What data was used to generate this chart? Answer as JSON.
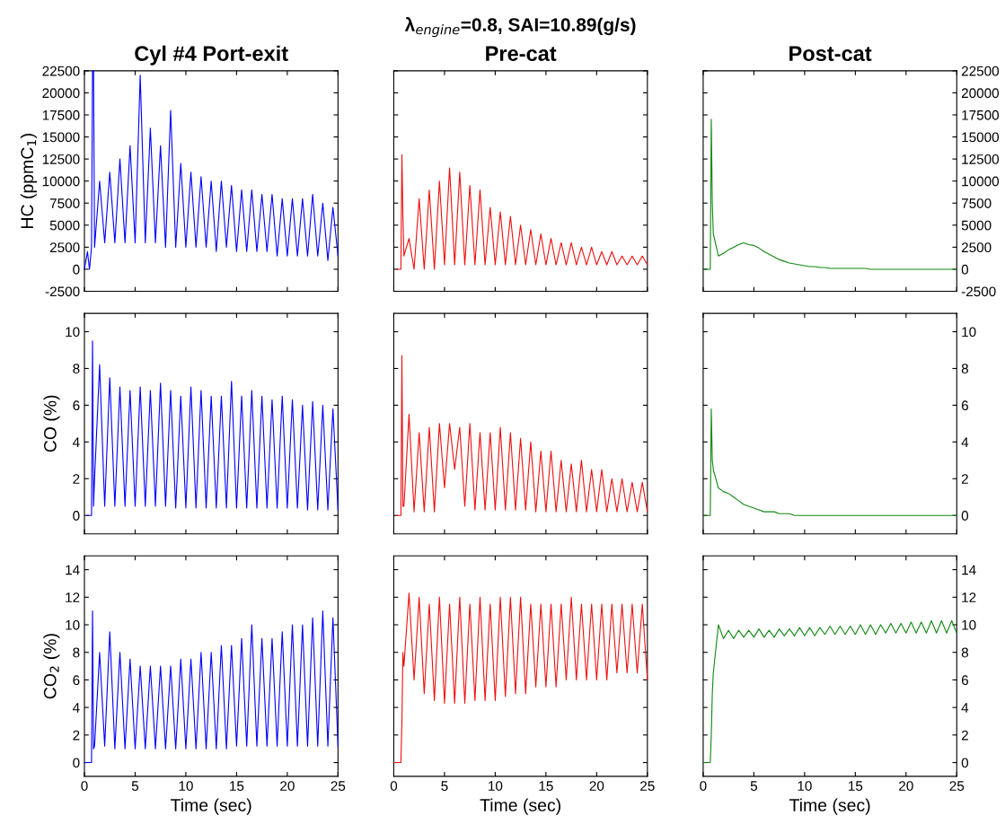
{
  "chart_data": [
    {
      "type": "line",
      "title": "Cyl #4 Port-exit",
      "ylabel": "HC (ppmC$_{1}$)",
      "tick_labels": "y",
      "xlim": [
        0,
        25
      ],
      "xticks": [
        0,
        5,
        10,
        15,
        20,
        25
      ],
      "ylim": [
        -2500,
        22500
      ],
      "yticks": [
        -2500,
        0,
        2500,
        5000,
        7500,
        10000,
        12500,
        15000,
        17500,
        20000,
        22500
      ],
      "x": [
        0,
        0.3,
        0.5,
        0.7,
        0.8,
        0.9,
        1.0,
        1.5,
        2.0,
        2.5,
        3.0,
        3.5,
        4.0,
        4.5,
        5.0,
        5.5,
        6.0,
        6.5,
        7.0,
        7.5,
        8.0,
        8.5,
        9.0,
        9.5,
        10.0,
        10.5,
        11.0,
        11.5,
        12.0,
        12.5,
        13.0,
        13.5,
        14.0,
        14.5,
        15.0,
        15.5,
        16.0,
        16.5,
        17.0,
        17.5,
        18.0,
        18.5,
        19.0,
        19.5,
        20.0,
        20.5,
        21.0,
        21.5,
        22.0,
        22.5,
        23.0,
        23.5,
        24.0,
        24.5,
        25.0
      ],
      "series": [
        {
          "color": "#0000ff",
          "values": [
            0,
            2000,
            0,
            2500,
            22500,
            22500,
            2500,
            10000,
            3000,
            11000,
            3000,
            12500,
            3000,
            14000,
            3000,
            22000,
            3000,
            16000,
            3000,
            14000,
            2500,
            18000,
            2500,
            12000,
            2500,
            11000,
            2500,
            10500,
            2500,
            10000,
            2000,
            10000,
            2500,
            9500,
            2000,
            9000,
            2000,
            9000,
            2000,
            8500,
            2000,
            8500,
            1500,
            8000,
            1500,
            8000,
            1500,
            8000,
            1500,
            8500,
            1500,
            7500,
            1000,
            7000,
            1500
          ]
        }
      ]
    },
    {
      "type": "line",
      "title": "Pre-cat",
      "subtitle": "λ$_{engine}$=0.8, SAI=10.89(g/s)",
      "tick_labels": false,
      "xlim": [
        0,
        25
      ],
      "xticks": [
        0,
        5,
        10,
        15,
        20,
        25
      ],
      "ylim": [
        -2500,
        22500
      ],
      "yticks": [
        -2500,
        0,
        2500,
        5000,
        7500,
        10000,
        12500,
        15000,
        17500,
        20000,
        22500
      ],
      "x": [
        0.3,
        0.5,
        0.7,
        0.8,
        0.9,
        1.0,
        1.5,
        2.0,
        2.5,
        3.0,
        3.5,
        4.0,
        4.5,
        5.0,
        5.5,
        6.0,
        6.5,
        7.0,
        7.5,
        8.0,
        8.5,
        9.0,
        9.5,
        10.0,
        10.5,
        11.0,
        11.5,
        12.0,
        12.5,
        13.0,
        13.5,
        14.0,
        14.5,
        15.0,
        15.5,
        16.0,
        16.5,
        17.0,
        17.5,
        18.0,
        18.5,
        19.0,
        19.5,
        20.0,
        20.5,
        21.0,
        21.5,
        22.0,
        22.5,
        23.0,
        23.5,
        24.0,
        24.5,
        25.0
      ],
      "series": [
        {
          "color": "#ee1111",
          "values": [
            0,
            0,
            0,
            13000,
            6000,
            1500,
            3500,
            0,
            8000,
            0,
            9000,
            0,
            10000,
            500,
            11500,
            500,
            11000,
            500,
            9500,
            500,
            9000,
            500,
            7000,
            500,
            6500,
            500,
            6000,
            500,
            5000,
            500,
            4500,
            500,
            4000,
            500,
            3500,
            500,
            3000,
            500,
            3000,
            500,
            2500,
            500,
            2500,
            500,
            2000,
            500,
            2000,
            500,
            1500,
            500,
            1500,
            500,
            1500,
            500
          ]
        }
      ]
    },
    {
      "type": "line",
      "title": "Post-cat",
      "tick_labels": "y",
      "xlim": [
        0,
        25
      ],
      "xticks": [
        0,
        5,
        10,
        15,
        20,
        25
      ],
      "ylim": [
        -2500,
        22500
      ],
      "yticks": [
        -2500,
        0,
        2500,
        5000,
        7500,
        10000,
        12500,
        15000,
        17500,
        20000,
        22500
      ],
      "x": [
        0,
        0.3,
        0.5,
        0.7,
        0.8,
        0.9,
        1.0,
        1.5,
        2.0,
        2.5,
        3.0,
        3.5,
        4.0,
        4.5,
        5.0,
        5.5,
        6.0,
        6.5,
        7.0,
        7.5,
        8.0,
        8.5,
        9.0,
        9.5,
        10.0,
        10.5,
        11.0,
        11.5,
        12.0,
        12.5,
        13.0,
        13.5,
        14.0,
        14.5,
        15.0,
        15.5,
        16.0,
        16.5,
        17.0,
        17.5,
        18.0,
        18.5,
        19.0,
        19.5,
        20.0,
        20.5,
        21.0,
        21.5,
        22.0,
        22.5,
        23.0,
        23.5,
        24.0,
        24.5,
        25.0
      ],
      "series": [
        {
          "color": "#118811",
          "values": [
            0,
            0,
            0,
            0,
            17000,
            7500,
            4000,
            1500,
            1800,
            2200,
            2500,
            2800,
            3000,
            2800,
            2700,
            2400,
            2000,
            1700,
            1400,
            1100,
            900,
            700,
            600,
            500,
            400,
            300,
            300,
            200,
            200,
            100,
            100,
            100,
            100,
            100,
            100,
            100,
            100,
            0,
            0,
            0,
            0,
            0,
            0,
            0,
            0,
            0,
            0,
            0,
            0,
            0,
            0,
            0,
            0,
            0,
            0
          ]
        }
      ]
    },
    {
      "type": "line",
      "ylabel": "CO (%)",
      "tick_labels": "y",
      "xlim": [
        0,
        25
      ],
      "xticks": [
        0,
        5,
        10,
        15,
        20,
        25
      ],
      "ylim": [
        -1,
        11
      ],
      "yticks": [
        0,
        2,
        4,
        6,
        8,
        10
      ],
      "x": [
        0.3,
        0.5,
        0.7,
        0.8,
        0.9,
        1.0,
        1.5,
        2.0,
        2.5,
        3.0,
        3.5,
        4.0,
        4.5,
        5.0,
        5.5,
        6.0,
        6.5,
        7.0,
        7.5,
        8.0,
        8.5,
        9.0,
        9.5,
        10.0,
        10.5,
        11.0,
        11.5,
        12.0,
        12.5,
        13.0,
        13.5,
        14.0,
        14.5,
        15.0,
        15.5,
        16.0,
        16.5,
        17.0,
        17.5,
        18.0,
        18.5,
        19.0,
        19.5,
        20.0,
        20.5,
        21.0,
        21.5,
        22.0,
        22.5,
        23.0,
        23.5,
        24.0,
        24.5,
        25.0
      ],
      "series": [
        {
          "color": "#0000ff",
          "values": [
            0,
            0,
            0,
            9.5,
            0.5,
            2,
            8.2,
            0.5,
            7.5,
            0.5,
            7,
            0.5,
            6.8,
            0.5,
            7,
            0.5,
            6.8,
            0.5,
            7.2,
            0.5,
            6.8,
            0.4,
            6.5,
            0.4,
            7,
            0.4,
            6.8,
            0.4,
            6.5,
            0.4,
            6.5,
            0.4,
            7.3,
            0.4,
            6.5,
            0.4,
            6.8,
            0.4,
            6.5,
            0.4,
            6.3,
            0.4,
            6.5,
            0.4,
            6.3,
            0.4,
            6,
            0.3,
            6.2,
            0.3,
            6,
            0.3,
            5.8,
            0.3
          ]
        }
      ]
    },
    {
      "type": "line",
      "tick_labels": false,
      "xlim": [
        0,
        25
      ],
      "xticks": [
        0,
        5,
        10,
        15,
        20,
        25
      ],
      "ylim": [
        -1,
        11
      ],
      "yticks": [
        0,
        2,
        4,
        6,
        8,
        10
      ],
      "x": [
        0.3,
        0.5,
        0.7,
        0.8,
        0.9,
        1.0,
        1.5,
        2.0,
        2.5,
        3.0,
        3.5,
        4.0,
        4.5,
        5.0,
        5.5,
        6.0,
        6.5,
        7.0,
        7.5,
        8.0,
        8.5,
        9.0,
        9.5,
        10.0,
        10.5,
        11.0,
        11.5,
        12.0,
        12.5,
        13.0,
        13.5,
        14.0,
        14.5,
        15.0,
        15.5,
        16.0,
        16.5,
        17.0,
        17.5,
        18.0,
        18.5,
        19.0,
        19.5,
        20.0,
        20.5,
        21.0,
        21.5,
        22.0,
        22.5,
        23.0,
        23.5,
        24.0,
        24.5,
        25.0
      ],
      "series": [
        {
          "color": "#ee1111",
          "values": [
            0,
            0,
            0,
            8.7,
            0.5,
            0.5,
            5.5,
            0.2,
            4.5,
            0.2,
            4.8,
            0.2,
            5,
            1.5,
            5,
            2.5,
            4.8,
            0.5,
            5,
            0.3,
            4.5,
            0.3,
            4.5,
            0.3,
            4.8,
            0.3,
            4.5,
            0.3,
            4.2,
            0.3,
            4,
            0.2,
            3.5,
            0.2,
            3.5,
            0.2,
            3,
            0.2,
            2.8,
            0.2,
            3,
            0.2,
            2.5,
            0.2,
            2.5,
            0.2,
            2,
            0.2,
            2,
            0.2,
            1.8,
            0.2,
            1.8,
            0.2
          ]
        }
      ]
    },
    {
      "type": "line",
      "tick_labels": "y",
      "xlim": [
        0,
        25
      ],
      "xticks": [
        0,
        5,
        10,
        15,
        20,
        25
      ],
      "ylim": [
        -1,
        11
      ],
      "yticks": [
        0,
        2,
        4,
        6,
        8,
        10
      ],
      "x": [
        0,
        0.3,
        0.5,
        0.7,
        0.8,
        0.9,
        1.0,
        1.5,
        2.0,
        2.5,
        3.0,
        3.5,
        4.0,
        4.5,
        5.0,
        5.5,
        6.0,
        6.5,
        7.0,
        7.5,
        8.0,
        8.5,
        9.0,
        9.5,
        10.0,
        10.5,
        11.0,
        11.5,
        12.0,
        12.5,
        13.0,
        13.5,
        14.0,
        14.5,
        15.0,
        15.5,
        16.0,
        16.5,
        17.0,
        17.5,
        18.0,
        18.5,
        19.0,
        19.5,
        20.0,
        20.5,
        21.0,
        21.5,
        22.0,
        22.5,
        23.0,
        23.5,
        24.0,
        24.5,
        25.0
      ],
      "series": [
        {
          "color": "#118811",
          "values": [
            0,
            0,
            0,
            0,
            5.8,
            3,
            2.5,
            1.5,
            1.3,
            1.2,
            1,
            0.8,
            0.6,
            0.5,
            0.4,
            0.3,
            0.2,
            0.2,
            0.2,
            0.1,
            0.1,
            0.1,
            0,
            0,
            0,
            0,
            0,
            0,
            0,
            0,
            0,
            0,
            0,
            0,
            0,
            0,
            0,
            0,
            0,
            0,
            0,
            0,
            0,
            0,
            0,
            0,
            0,
            0,
            0,
            0,
            0,
            0,
            0,
            0,
            0
          ]
        }
      ]
    },
    {
      "type": "line",
      "ylabel": "CO$_{2}$ (%)",
      "xlabel": "Time (sec)",
      "xlim": [
        0,
        25
      ],
      "xticks": [
        0,
        5,
        10,
        15,
        20,
        25
      ],
      "ylim": [
        -1,
        15
      ],
      "yticks": [
        0,
        2,
        4,
        6,
        8,
        10,
        12,
        14
      ],
      "x": [
        0,
        0.3,
        0.5,
        0.7,
        0.8,
        0.9,
        1.0,
        1.5,
        2.0,
        2.5,
        3.0,
        3.5,
        4.0,
        4.5,
        5.0,
        5.5,
        6.0,
        6.5,
        7.0,
        7.5,
        8.0,
        8.5,
        9.0,
        9.5,
        10.0,
        10.5,
        11.0,
        11.5,
        12.0,
        12.5,
        13.0,
        13.5,
        14.0,
        14.5,
        15.0,
        15.5,
        16.0,
        16.5,
        17.0,
        17.5,
        18.0,
        18.5,
        19.0,
        19.5,
        20.0,
        20.5,
        21.0,
        21.5,
        22.0,
        22.5,
        23.0,
        23.5,
        24.0,
        24.5,
        25.0
      ],
      "series": [
        {
          "color": "#0000ff",
          "values": [
            0,
            0,
            0,
            0,
            11,
            1,
            1.2,
            8,
            1.2,
            9.5,
            1,
            8,
            1,
            7.5,
            1,
            7,
            1,
            7,
            1,
            7,
            1,
            7,
            1,
            7.5,
            1,
            7.5,
            1,
            8,
            1,
            8,
            1,
            8.5,
            1,
            8.5,
            1.2,
            9,
            1.2,
            10,
            1.2,
            9,
            1.2,
            9,
            1.2,
            9.5,
            1.2,
            10,
            1.2,
            10,
            1.2,
            10.5,
            1.2,
            11,
            1.2,
            10.5,
            1.2
          ]
        }
      ]
    },
    {
      "type": "line",
      "xlabel": "Time (sec)",
      "tick_labels": "x",
      "xlim": [
        0,
        25
      ],
      "xticks": [
        0,
        5,
        10,
        15,
        20,
        25
      ],
      "ylim": [
        -1,
        15
      ],
      "yticks": [
        0,
        2,
        4,
        6,
        8,
        10,
        12,
        14
      ],
      "x": [
        0,
        0.3,
        0.5,
        0.7,
        0.8,
        0.9,
        1.0,
        1.5,
        2.0,
        2.5,
        3.0,
        3.5,
        4.0,
        4.5,
        5.0,
        5.5,
        6.0,
        6.5,
        7.0,
        7.5,
        8.0,
        8.5,
        9.0,
        9.5,
        10.0,
        10.5,
        11.0,
        11.5,
        12.0,
        12.5,
        13.0,
        13.5,
        14.0,
        14.5,
        15.0,
        15.5,
        16.0,
        16.5,
        17.0,
        17.5,
        18.0,
        18.5,
        19.0,
        19.5,
        20.0,
        20.5,
        21.0,
        21.5,
        22.0,
        22.5,
        23.0,
        23.5,
        24.0,
        24.5,
        25.0
      ],
      "series": [
        {
          "color": "#ee1111",
          "values": [
            0,
            0,
            0,
            0,
            3,
            8,
            7,
            12.3,
            6,
            12,
            5,
            11.5,
            4.5,
            12,
            4.3,
            11.5,
            4.3,
            12,
            4.3,
            11.5,
            4.5,
            12,
            4.5,
            11.5,
            4.5,
            12,
            4.8,
            12,
            5,
            12,
            5,
            11.5,
            5.5,
            11.5,
            5.5,
            11.5,
            5.5,
            11.5,
            6,
            12,
            6,
            11.5,
            6,
            11.5,
            6,
            11.5,
            6,
            11.5,
            6.5,
            11.5,
            6.5,
            11.5,
            6.5,
            11.5,
            6
          ]
        }
      ]
    },
    {
      "type": "line",
      "xlabel": "Time (sec)",
      "xlim": [
        0,
        25
      ],
      "xticks": [
        0,
        5,
        10,
        15,
        20,
        25
      ],
      "ylim": [
        -1,
        15
      ],
      "yticks": [
        0,
        2,
        4,
        6,
        8,
        10,
        12,
        14
      ],
      "x": [
        0,
        0.3,
        0.5,
        0.7,
        0.8,
        0.9,
        1.0,
        1.5,
        2.0,
        2.5,
        3.0,
        3.5,
        4.0,
        4.5,
        5.0,
        5.5,
        6.0,
        6.5,
        7.0,
        7.5,
        8.0,
        8.5,
        9.0,
        9.5,
        10.0,
        10.5,
        11.0,
        11.5,
        12.0,
        12.5,
        13.0,
        13.5,
        14.0,
        14.5,
        15.0,
        15.5,
        16.0,
        16.5,
        17.0,
        17.5,
        18.0,
        18.5,
        19.0,
        19.5,
        20.0,
        20.5,
        21.0,
        21.5,
        22.0,
        22.5,
        23.0,
        23.5,
        24.0,
        24.5,
        25.0
      ],
      "series": [
        {
          "color": "#118811",
          "values": [
            0,
            0,
            0,
            0,
            2,
            5,
            6.5,
            10,
            9,
            9.6,
            9,
            9.6,
            9.1,
            9.6,
            9.1,
            9.7,
            9.1,
            9.6,
            9.1,
            9.7,
            9.2,
            9.7,
            9.2,
            9.8,
            9.2,
            9.8,
            9.2,
            9.8,
            9.3,
            9.9,
            9.3,
            9.9,
            9.3,
            9.9,
            9.3,
            10,
            9.3,
            10,
            9.3,
            10,
            9.4,
            10.1,
            9.4,
            10.1,
            9.4,
            10.2,
            9.4,
            10.2,
            9.4,
            10.3,
            9.4,
            10.3,
            9.4,
            10.3,
            9.4
          ]
        }
      ]
    }
  ]
}
